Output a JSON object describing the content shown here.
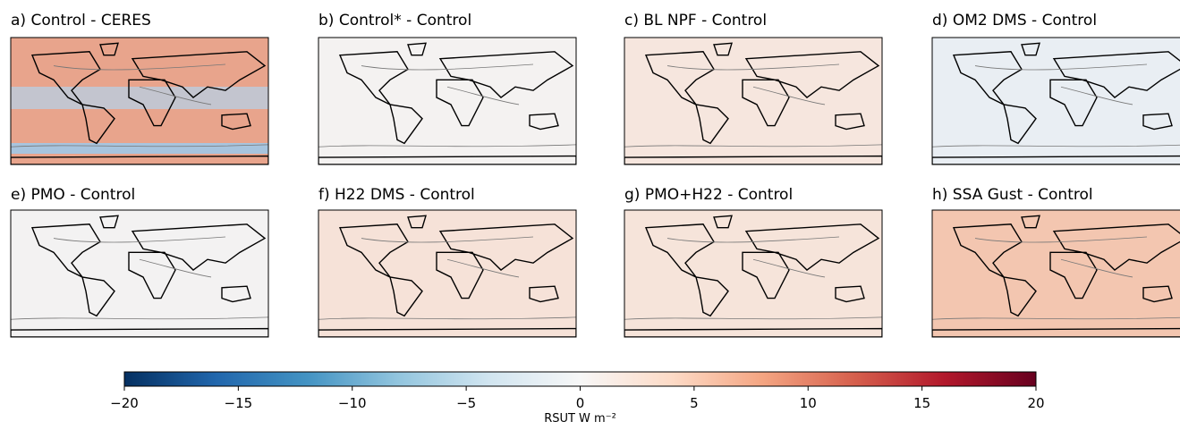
{
  "chart_data": {
    "type": "map-grid",
    "panels": [
      "a) Control - CERES",
      "b) Control* - Control",
      "c) BL NPF - Control",
      "d) OM2 DMS - Control",
      "e) PMO - Control",
      "f) H22 DMS - Control",
      "g) PMO+H22 - Control",
      "h) SSA Gust - Control"
    ],
    "colorbar": {
      "lim": [
        -20,
        20
      ],
      "ticks": [
        {
          "value": -20,
          "label": "−20"
        },
        {
          "value": -15,
          "label": "−15"
        },
        {
          "value": -10,
          "label": "−10"
        },
        {
          "value": -5,
          "label": "−5"
        },
        0,
        5,
        10,
        15,
        20
      ],
      "label": "RSUT W m⁻²",
      "colors": [
        "#053061",
        "#2166ac",
        "#4393c3",
        "#92c5de",
        "#d1e5f0",
        "#f7f7f7",
        "#fddbc7",
        "#f4a582",
        "#d6604d",
        "#b2182b",
        "#67001f"
      ]
    }
  }
}
